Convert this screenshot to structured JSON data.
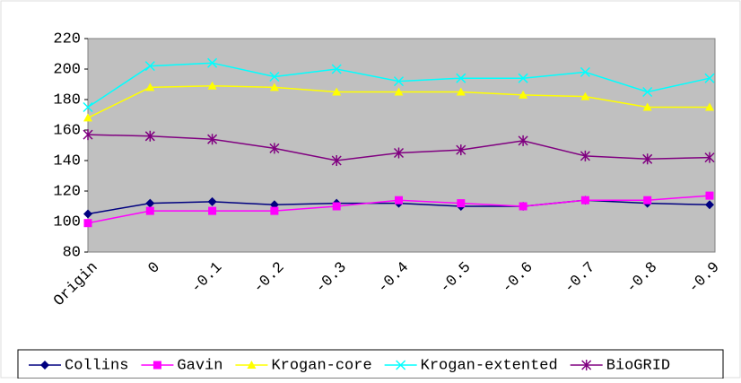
{
  "chart_data": {
    "type": "line",
    "categories": [
      "Origin",
      "0",
      "-0.1",
      "-0.2",
      "-0.3",
      "-0.4",
      "-0.5",
      "-0.6",
      "-0.7",
      "-0.8",
      "-0.9"
    ],
    "series": [
      {
        "name": "Collins",
        "color": "#000080",
        "marker": "diamond",
        "values": [
          105,
          112,
          113,
          111,
          112,
          112,
          110,
          110,
          114,
          112,
          111
        ]
      },
      {
        "name": "Gavin",
        "color": "#ff00ff",
        "marker": "square",
        "values": [
          99,
          107,
          107,
          107,
          110,
          114,
          112,
          110,
          114,
          114,
          117
        ]
      },
      {
        "name": "Krogan-core",
        "color": "#ffff00",
        "marker": "triangle",
        "values": [
          168,
          188,
          189,
          188,
          185,
          185,
          185,
          183,
          182,
          175,
          175
        ]
      },
      {
        "name": "Krogan-extented",
        "color": "#00ffff",
        "marker": "x",
        "values": [
          175,
          202,
          204,
          195,
          200,
          192,
          194,
          194,
          198,
          185,
          194
        ]
      },
      {
        "name": "BioGRID",
        "color": "#800080",
        "marker": "star",
        "values": [
          157,
          156,
          154,
          148,
          140,
          145,
          147,
          153,
          143,
          141,
          142
        ]
      }
    ],
    "ylim": [
      80,
      220
    ],
    "yticks": [
      80,
      100,
      120,
      140,
      160,
      180,
      200,
      220
    ],
    "grid": false,
    "legend": "bottom"
  }
}
